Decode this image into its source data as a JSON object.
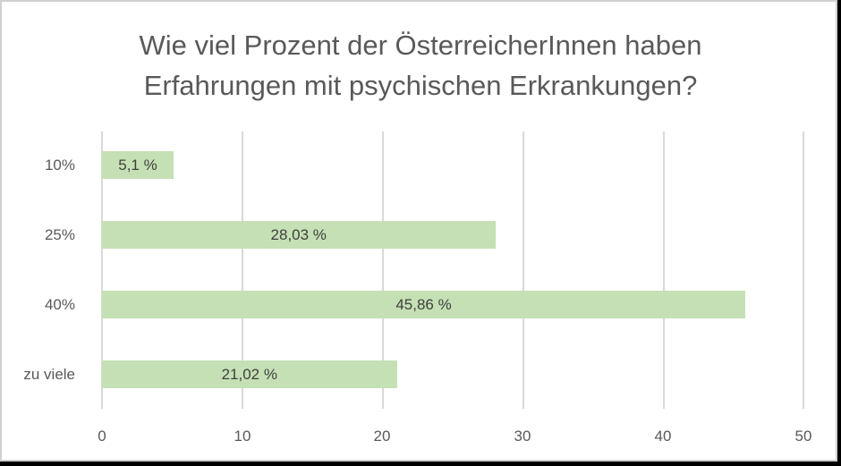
{
  "chart_data": {
    "type": "bar",
    "orientation": "horizontal",
    "title": "Wie viel Prozent der ÖsterreicherInnen haben Erfahrungen mit psychischen Erkrankungen?",
    "title_lines": [
      "Wie viel Prozent der ÖsterreicherInnen haben",
      "Erfahrungen mit psychischen Erkrankungen?"
    ],
    "categories": [
      "10%",
      "25%",
      "40%",
      "zu viele"
    ],
    "values": [
      5.1,
      28.03,
      45.86,
      21.02
    ],
    "data_labels": [
      "5,1 %",
      "28,03 %",
      "45,86 %",
      "21,02 %"
    ],
    "xlabel": "",
    "ylabel": "",
    "xlim": [
      0,
      50
    ],
    "x_ticks": [
      "0",
      "10",
      "20",
      "30",
      "40",
      "50"
    ],
    "grid": "vertical",
    "legend": "none",
    "colors": {
      "bar": "#c5e0b4",
      "grid": "#d9d9d9",
      "text": "#595959"
    }
  }
}
